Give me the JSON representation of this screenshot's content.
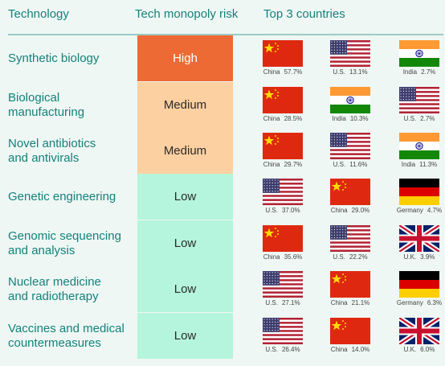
{
  "header": {
    "technology": "Technology",
    "risk": "Tech monopoly risk",
    "top": "Top 3 countries"
  },
  "rows": [
    {
      "tech": [
        "Synthetic biology"
      ],
      "risk": "High",
      "countries": [
        {
          "flag": "china-flag",
          "name": "China",
          "pct": "57.7%"
        },
        {
          "flag": "us-flag",
          "name": "U.S.",
          "pct": "13.1%"
        },
        {
          "flag": "india-flag",
          "name": "India",
          "pct": "2.7%"
        }
      ]
    },
    {
      "tech": [
        "Biological",
        "manufacturing"
      ],
      "risk": "Medium",
      "countries": [
        {
          "flag": "china-flag",
          "name": "China",
          "pct": "28.5%"
        },
        {
          "flag": "india-flag",
          "name": "India",
          "pct": "10.3%"
        },
        {
          "flag": "us-flag",
          "name": "U.S.",
          "pct": "2.7%"
        }
      ]
    },
    {
      "tech": [
        "Novel antibiotics",
        "and antivirals"
      ],
      "risk": "Medium",
      "countries": [
        {
          "flag": "china-flag",
          "name": "China",
          "pct": "29.7%"
        },
        {
          "flag": "us-flag",
          "name": "U.S.",
          "pct": "11.6%"
        },
        {
          "flag": "india-flag",
          "name": "India",
          "pct": "11.3%"
        }
      ]
    },
    {
      "tech": [
        "Genetic engineering"
      ],
      "risk": "Low",
      "countries": [
        {
          "flag": "us-flag",
          "name": "U.S.",
          "pct": "37.0%"
        },
        {
          "flag": "china-flag",
          "name": "China",
          "pct": "29.0%"
        },
        {
          "flag": "germany-flag",
          "name": "Germany",
          "pct": "4.7%"
        }
      ]
    },
    {
      "tech": [
        "Genomic sequencing",
        "and analysis"
      ],
      "risk": "Low",
      "countries": [
        {
          "flag": "china-flag",
          "name": "China",
          "pct": "35.6%"
        },
        {
          "flag": "us-flag",
          "name": "U.S.",
          "pct": "22.2%"
        },
        {
          "flag": "uk-flag",
          "name": "U.K.",
          "pct": "3.9%"
        }
      ]
    },
    {
      "tech": [
        "Nuclear medicine",
        "and radiotherapy"
      ],
      "risk": "Low",
      "countries": [
        {
          "flag": "us-flag",
          "name": "U.S.",
          "pct": "27.1%"
        },
        {
          "flag": "china-flag",
          "name": "China",
          "pct": "21.1%"
        },
        {
          "flag": "germany-flag",
          "name": "Germany",
          "pct": "6.3%"
        }
      ]
    },
    {
      "tech": [
        "Vaccines and medical",
        "countermeasures"
      ],
      "risk": "Low",
      "countries": [
        {
          "flag": "us-flag",
          "name": "U.S.",
          "pct": "26.4%"
        },
        {
          "flag": "china-flag",
          "name": "China",
          "pct": "14.0%"
        },
        {
          "flag": "uk-flag",
          "name": "U.K.",
          "pct": "6.0%"
        }
      ]
    }
  ],
  "colors": {
    "text_accent": "#14817c",
    "risk_high": "#ee6a35",
    "risk_medium": "#fcd0a1",
    "risk_low": "#b5f5dd",
    "background": "#eef7f3"
  }
}
